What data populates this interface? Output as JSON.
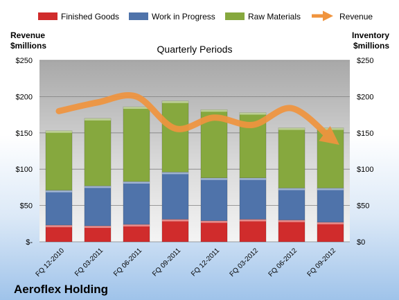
{
  "chart_data": {
    "type": "bar",
    "stacked": true,
    "title": "Quarterly Periods",
    "company": "Aeroflex Holding",
    "left_axis_label": [
      "Revenue",
      "$millions"
    ],
    "right_axis_label": [
      "Inventory",
      "$millions"
    ],
    "categories": [
      "FQ 12-2010",
      "FQ 03-2011",
      "FQ 06-2011",
      "FQ 09-2011",
      "FQ 12-2011",
      "FQ 03-2012",
      "FQ 06-2012",
      "FQ 09-2012"
    ],
    "ylim": [
      0,
      250
    ],
    "y_ticks": [
      0,
      50,
      100,
      150,
      200,
      250
    ],
    "left_tick_labels": [
      "$-",
      "$50",
      "$100",
      "$150",
      "$200",
      "$250"
    ],
    "right_tick_labels": [
      "$0",
      "$50",
      "$100",
      "$150",
      "$200",
      "$250"
    ],
    "grid": true,
    "legend_position": "top",
    "series": [
      {
        "name": "Finished Goods",
        "color": "#d02c2c",
        "values": [
          23,
          22,
          24,
          31,
          29,
          31,
          30,
          27
        ]
      },
      {
        "name": "Work in Progress",
        "color": "#4f73aa",
        "values": [
          48,
          55,
          59,
          65,
          59,
          57,
          44,
          47
        ]
      },
      {
        "name": "Raw Materials",
        "color": "#86a83e",
        "values": [
          82,
          93,
          103,
          98,
          94,
          90,
          83,
          83
        ]
      }
    ],
    "line_series": {
      "name": "Revenue",
      "color": "#f0943e",
      "values": [
        180,
        192,
        200,
        156,
        171,
        161,
        184,
        143
      ]
    }
  }
}
